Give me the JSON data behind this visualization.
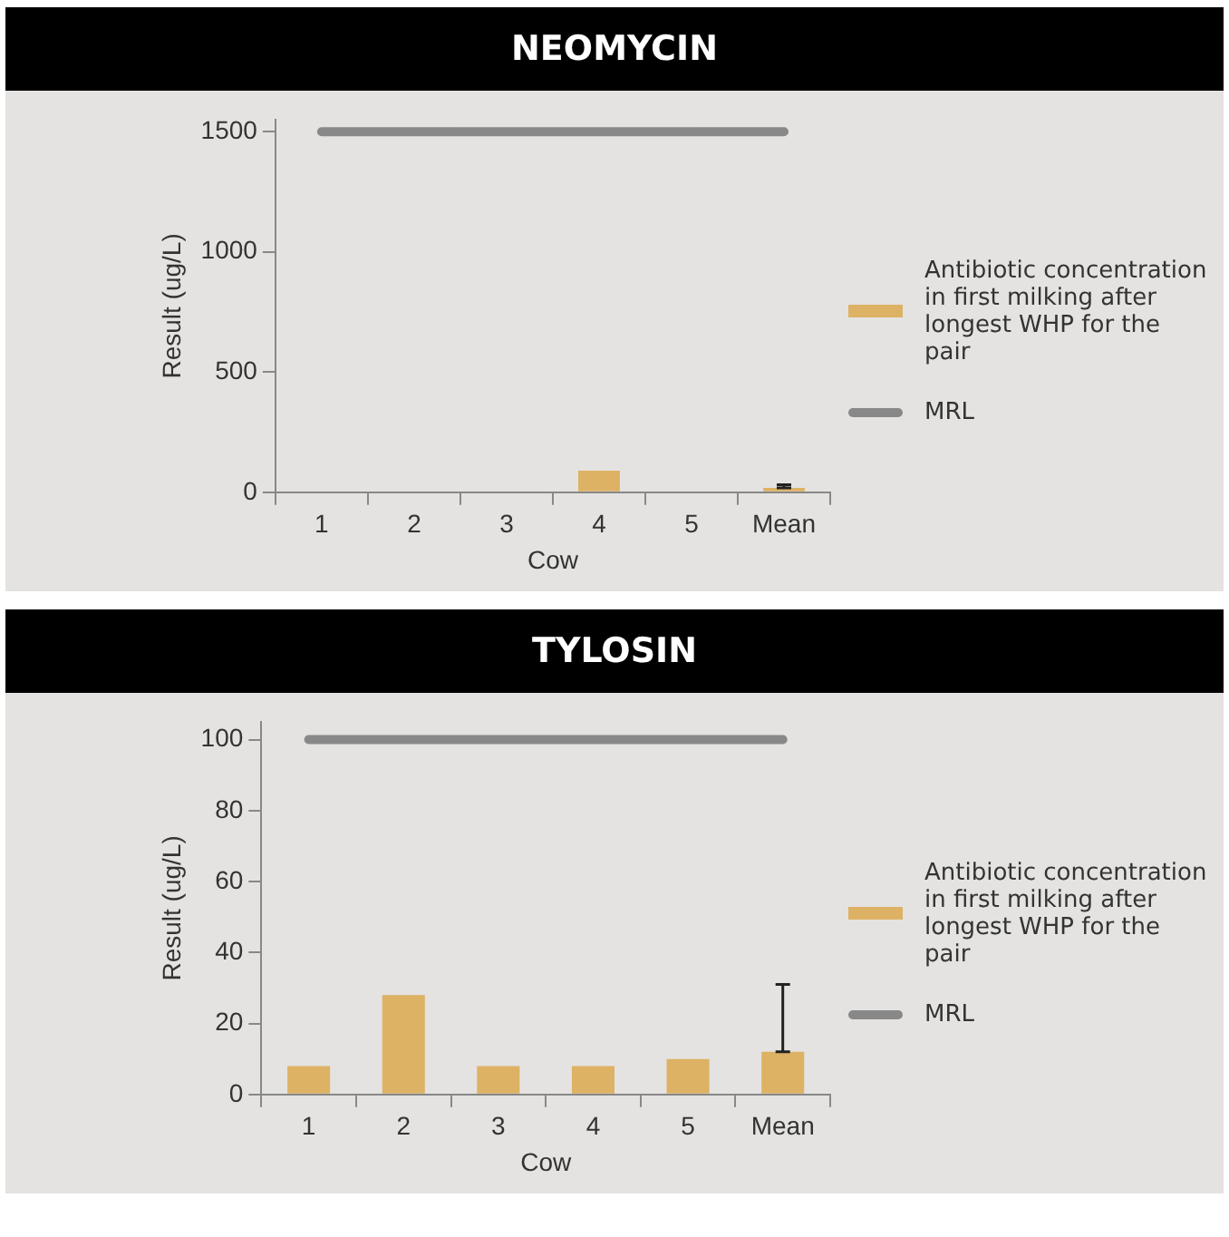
{
  "chart_data": [
    {
      "type": "bar",
      "title": "NEOMYCIN",
      "xlabel": "Cow",
      "ylabel": "Result (ug/L)",
      "categories": [
        "1",
        "2",
        "3",
        "4",
        "5",
        "Mean"
      ],
      "series": [
        {
          "name": "Antibiotic concentration in first milking after longest WHP for the pair",
          "color": "#ddb264",
          "values": [
            0,
            0,
            0,
            90,
            0,
            18
          ],
          "errors": [
            null,
            null,
            null,
            null,
            null,
            [
              18,
              31
            ]
          ]
        },
        {
          "type": "line",
          "name": "MRL",
          "color": "#888888",
          "values": [
            1500,
            1500,
            1500,
            1500,
            1500,
            1500
          ]
        }
      ],
      "ylim": [
        0,
        1550
      ],
      "yticks": [
        0,
        500,
        1000,
        1500
      ],
      "grid": false,
      "legend": "right",
      "marker": "none"
    },
    {
      "type": "bar",
      "title": "TYLOSIN",
      "xlabel": "Cow",
      "ylabel": "Result (ug/L)",
      "categories": [
        "1",
        "2",
        "3",
        "4",
        "5",
        "Mean"
      ],
      "series": [
        {
          "name": "Antibiotic concentration in first milking after longest WHP for the pair",
          "color": "#ddb264",
          "values": [
            8,
            28,
            8,
            8,
            10,
            12
          ],
          "errors": [
            null,
            null,
            null,
            null,
            null,
            [
              12,
              31
            ]
          ]
        },
        {
          "type": "line",
          "name": "MRL",
          "color": "#888888",
          "values": [
            100,
            100,
            100,
            100,
            100,
            100
          ]
        }
      ],
      "ylim": [
        0,
        105
      ],
      "yticks": [
        0,
        20,
        40,
        60,
        80,
        100
      ],
      "grid": false,
      "legend": "right",
      "marker": "none"
    }
  ]
}
